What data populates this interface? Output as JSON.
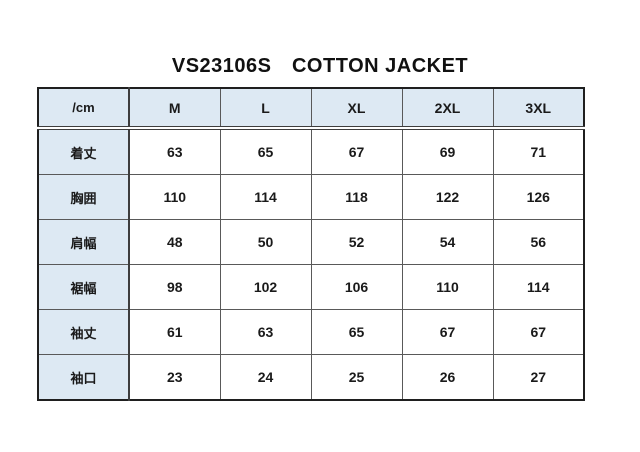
{
  "page": {
    "title": "VS23106S　COTTON JACKET"
  },
  "size_table": {
    "unit_header": "/cm",
    "columns": [
      "M",
      "L",
      "XL",
      "2XL",
      "3XL"
    ],
    "rows": [
      {
        "label": "着丈",
        "values": [
          "63",
          "65",
          "67",
          "69",
          "71"
        ]
      },
      {
        "label": "胸囲",
        "values": [
          "110",
          "114",
          "118",
          "122",
          "126"
        ]
      },
      {
        "label": "肩幅",
        "values": [
          "48",
          "50",
          "52",
          "54",
          "56"
        ]
      },
      {
        "label": "裾幅",
        "values": [
          "98",
          "102",
          "106",
          "110",
          "114"
        ]
      },
      {
        "label": "袖丈",
        "values": [
          "61",
          "63",
          "65",
          "67",
          "67"
        ]
      },
      {
        "label": "袖口",
        "values": [
          "23",
          "24",
          "25",
          "26",
          "27"
        ]
      }
    ],
    "colors": {
      "header_bg": "#dde9f3",
      "grid_line": "#595959",
      "outer_border": "#1f1f1f",
      "text": "#1a1a1a"
    }
  }
}
